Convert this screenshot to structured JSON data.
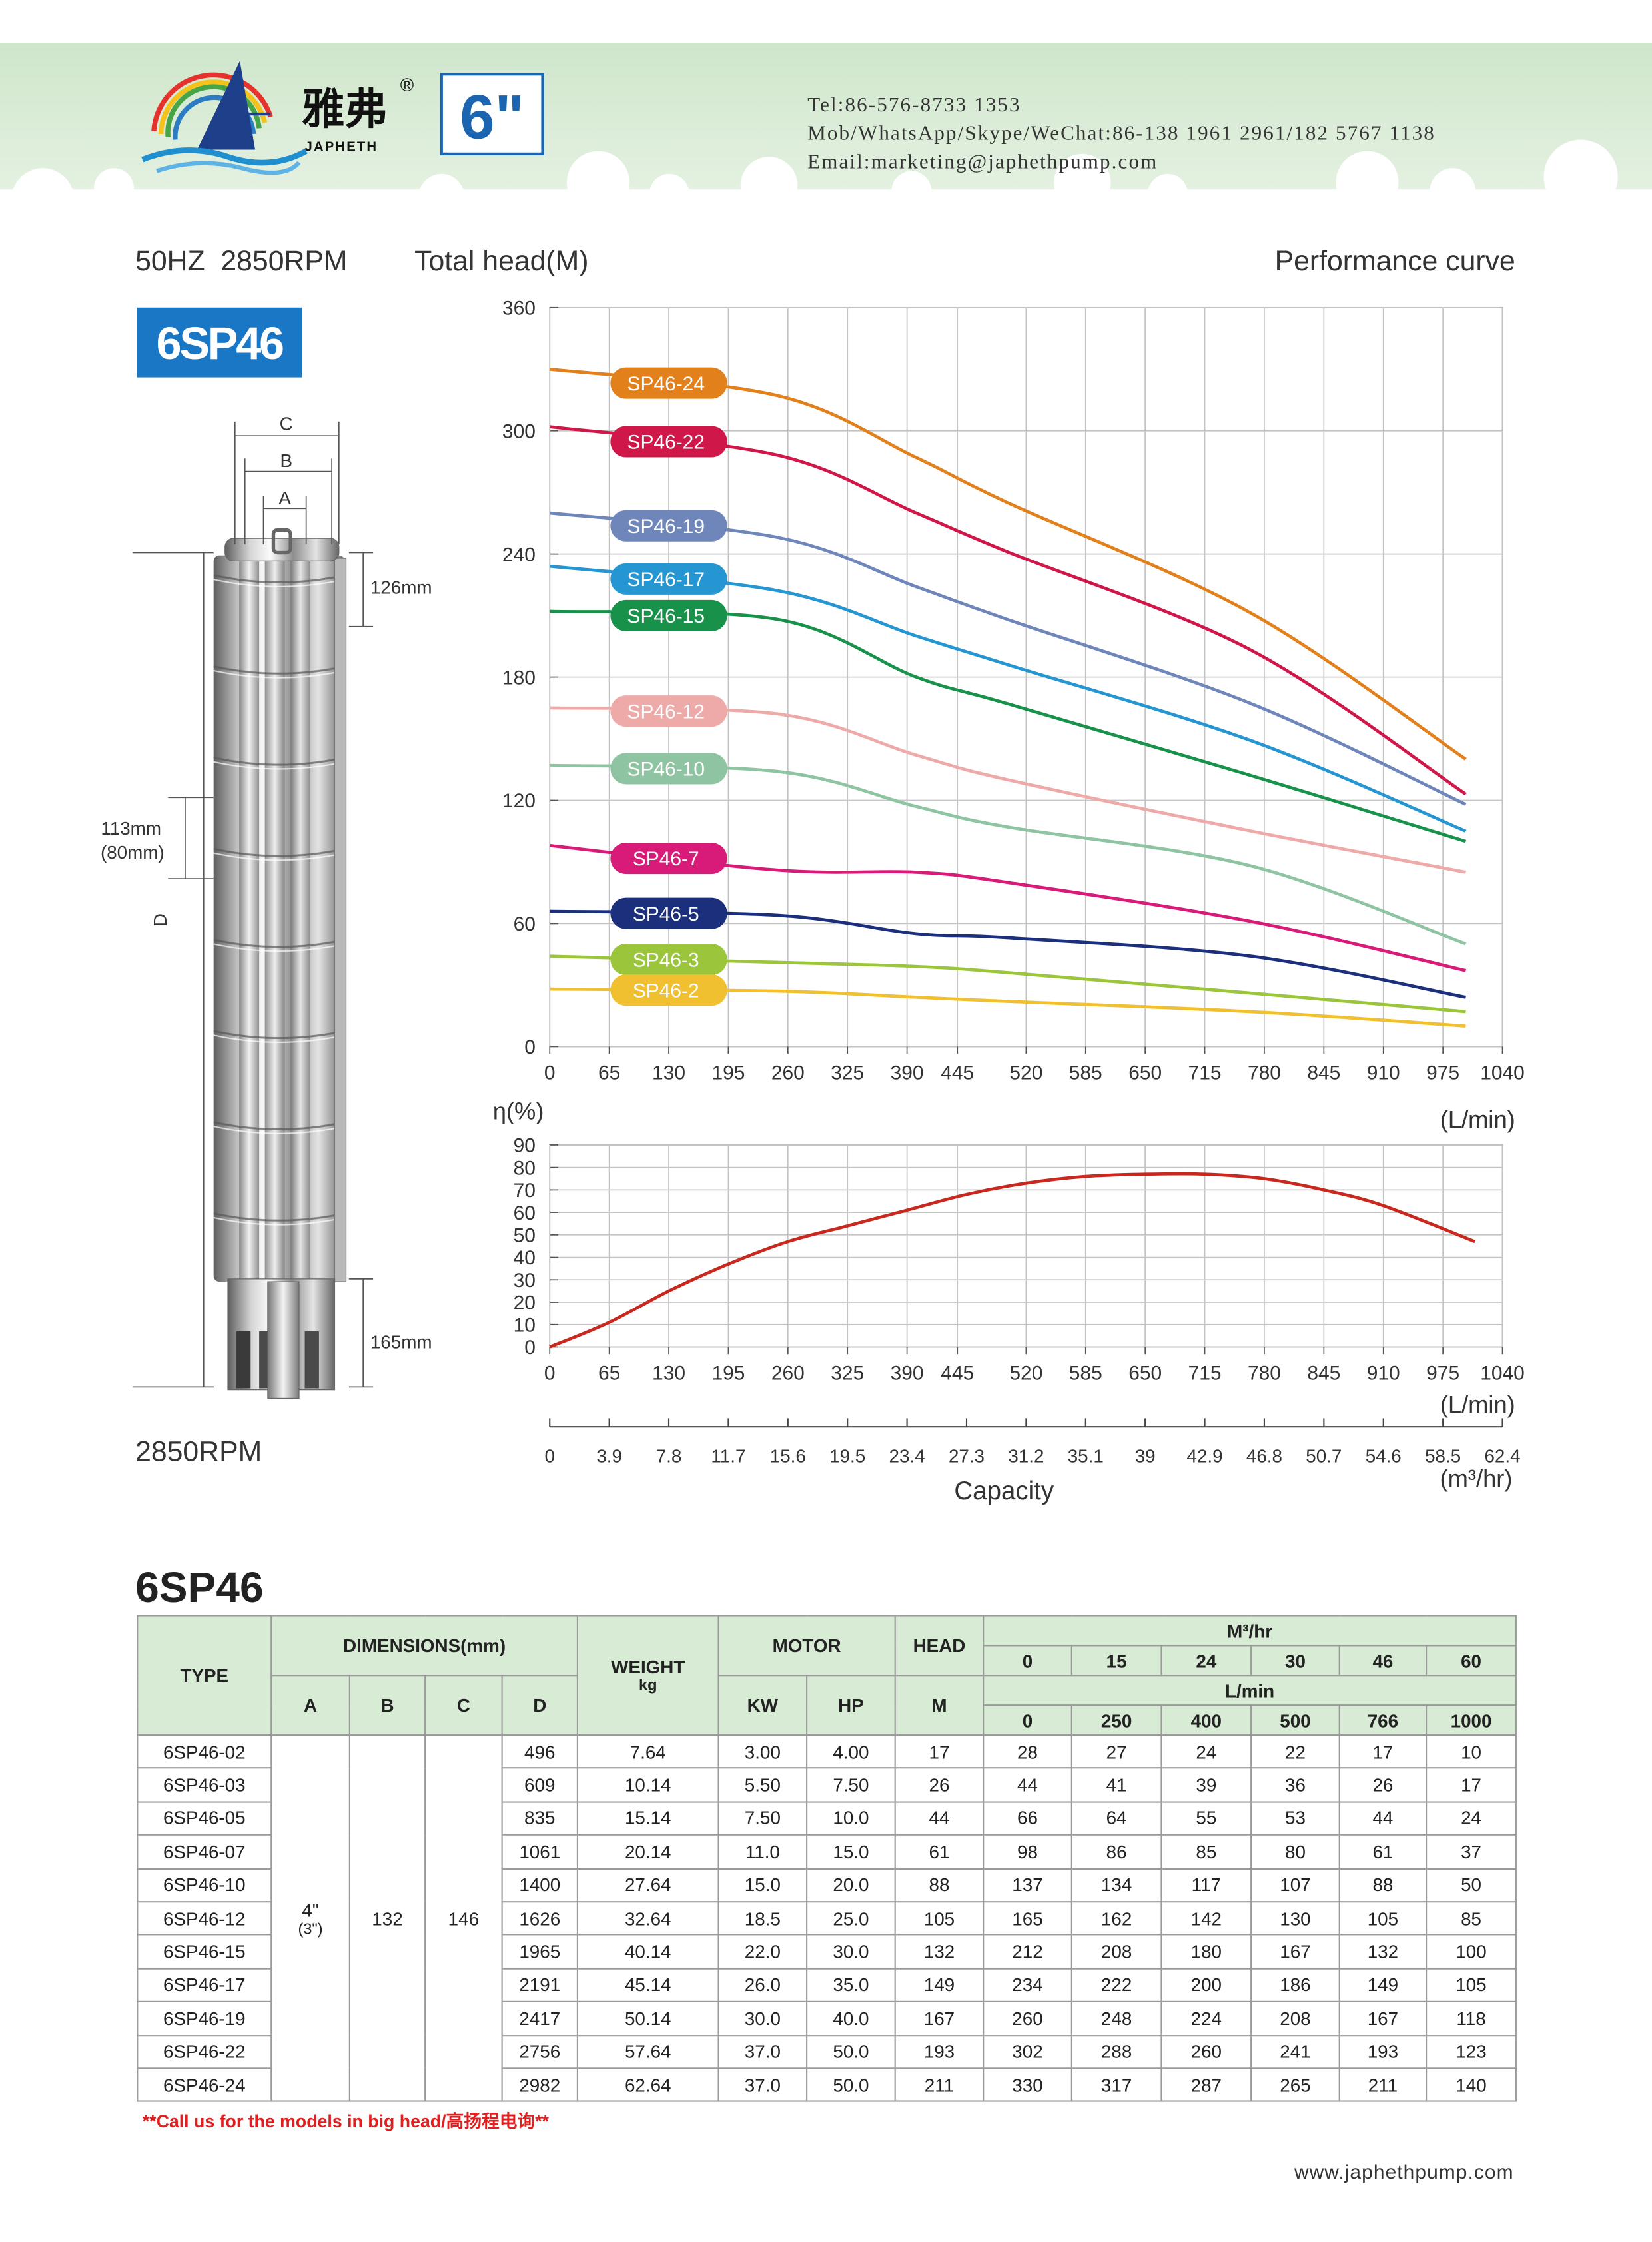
{
  "header": {
    "brand_cn": "雅弗",
    "brand_en": "JAPHETH",
    "registered": "®",
    "size": "6\"",
    "contacts": [
      "Tel:86-576-8733 1353",
      "Mob/WhatsApp/Skype/WeChat:86-138 1961 2961/182 5767 1138",
      "Email:marketing@japhethpump.com"
    ]
  },
  "subtitle": {
    "spec": "50HZ  2850RPM",
    "right": "Performance curve"
  },
  "model": "6SP46",
  "pump": {
    "labels": {
      "c": "C",
      "b": "B",
      "a": "A",
      "top": "126mm",
      "mid": "113mm",
      "mid_alt": "(80mm)",
      "d": "D",
      "bottom": "165mm"
    },
    "rpm": "2850RPM"
  },
  "chart_data": [
    {
      "type": "line",
      "y_label": "Total head(M)",
      "x_unit": "(L/min)",
      "xlim": [
        0,
        1040
      ],
      "xticks": [
        0,
        65,
        130,
        195,
        260,
        325,
        390,
        445,
        520,
        585,
        650,
        715,
        780,
        845,
        910,
        975,
        1040
      ],
      "ylim": [
        0,
        360
      ],
      "yticks": [
        0,
        60,
        120,
        180,
        240,
        300,
        360
      ],
      "grid": true,
      "x": [
        0,
        250,
        400,
        500,
        766,
        1000
      ],
      "series": [
        {
          "name": "SP46-24",
          "color": "#e2801c",
          "values": [
            330,
            317,
            287,
            265,
            211,
            140
          ]
        },
        {
          "name": "SP46-22",
          "color": "#d0174a",
          "values": [
            302,
            288,
            260,
            241,
            193,
            123
          ]
        },
        {
          "name": "SP46-19",
          "color": "#6f86bb",
          "values": [
            260,
            248,
            224,
            208,
            167,
            118
          ]
        },
        {
          "name": "SP46-17",
          "color": "#2596d2",
          "values": [
            234,
            222,
            200,
            186,
            149,
            105
          ]
        },
        {
          "name": "SP46-15",
          "color": "#18924a",
          "values": [
            212,
            208,
            180,
            167,
            132,
            100
          ]
        },
        {
          "name": "SP46-12",
          "color": "#eeaaa8",
          "values": [
            165,
            162,
            142,
            130,
            105,
            85
          ]
        },
        {
          "name": "SP46-10",
          "color": "#8fc4a2",
          "values": [
            137,
            134,
            117,
            107,
            88,
            50
          ]
        },
        {
          "name": "SP46-7",
          "color": "#d81b78",
          "values": [
            98,
            86,
            85,
            80,
            61,
            37
          ]
        },
        {
          "name": "SP46-5",
          "color": "#1b2f7c",
          "values": [
            66,
            64,
            55,
            53,
            44,
            24
          ]
        },
        {
          "name": "SP46-3",
          "color": "#9bc53a",
          "values": [
            44,
            41,
            39,
            36,
            26,
            17
          ]
        },
        {
          "name": "SP46-2",
          "color": "#f0c030",
          "values": [
            28,
            27,
            24,
            22,
            17,
            10
          ]
        }
      ]
    },
    {
      "type": "line",
      "y_label": "η(%)",
      "x_unit": "(L/min)",
      "xlim": [
        0,
        1040
      ],
      "xticks": [
        0,
        65,
        130,
        195,
        260,
        325,
        390,
        445,
        520,
        585,
        650,
        715,
        780,
        845,
        910,
        975,
        1040
      ],
      "ylim": [
        0,
        90
      ],
      "yticks": [
        0,
        10,
        20,
        30,
        40,
        50,
        60,
        70,
        80,
        90
      ],
      "grid": true,
      "x": [
        0,
        65,
        130,
        195,
        260,
        325,
        390,
        455,
        520,
        585,
        650,
        715,
        780,
        845,
        910,
        1010
      ],
      "values": [
        0,
        11,
        25,
        37,
        47,
        54,
        61,
        68,
        73,
        76,
        77,
        77,
        75,
        70,
        63,
        47
      ],
      "color": "#c8281e",
      "x2lim": [
        0,
        62.4
      ],
      "x2ticks": [
        0,
        3.9,
        7.8,
        11.7,
        15.6,
        19.5,
        23.4,
        27.3,
        31.2,
        35.1,
        39,
        42.9,
        46.8,
        50.7,
        54.6,
        58.5,
        62.4
      ],
      "x2_unit_top": "(L/min)",
      "x2_label": "Capacity",
      "x2_unit": "(m³/hr)"
    }
  ],
  "table": {
    "title": "6SP46",
    "headers": {
      "type": "TYPE",
      "dimensions": "DIMENSIONS(mm)",
      "dims": [
        "A",
        "B",
        "C",
        "D"
      ],
      "weight": [
        "WEIGHT",
        "kg"
      ],
      "motor": "MOTOR",
      "motor_cols": [
        "KW",
        "HP"
      ],
      "head": "HEAD",
      "head_unit": "M",
      "flow_unit_1": "M³/hr",
      "flow_1": [
        "0",
        "15",
        "24",
        "30",
        "46",
        "60"
      ],
      "flow_unit_2": "L/min",
      "flow_2": [
        "0",
        "250",
        "400",
        "500",
        "766",
        "1000"
      ]
    },
    "merged": {
      "a": [
        "4\"",
        "(3\")"
      ],
      "b": "132",
      "c": "146"
    },
    "rows": [
      [
        "6SP46-02",
        "496",
        "7.64",
        "3.00",
        "4.00",
        "17",
        "28",
        "27",
        "24",
        "22",
        "17",
        "10"
      ],
      [
        "6SP46-03",
        "609",
        "10.14",
        "5.50",
        "7.50",
        "26",
        "44",
        "41",
        "39",
        "36",
        "26",
        "17"
      ],
      [
        "6SP46-05",
        "835",
        "15.14",
        "7.50",
        "10.0",
        "44",
        "66",
        "64",
        "55",
        "53",
        "44",
        "24"
      ],
      [
        "6SP46-07",
        "1061",
        "20.14",
        "11.0",
        "15.0",
        "61",
        "98",
        "86",
        "85",
        "80",
        "61",
        "37"
      ],
      [
        "6SP46-10",
        "1400",
        "27.64",
        "15.0",
        "20.0",
        "88",
        "137",
        "134",
        "117",
        "107",
        "88",
        "50"
      ],
      [
        "6SP46-12",
        "1626",
        "32.64",
        "18.5",
        "25.0",
        "105",
        "165",
        "162",
        "142",
        "130",
        "105",
        "85"
      ],
      [
        "6SP46-15",
        "1965",
        "40.14",
        "22.0",
        "30.0",
        "132",
        "212",
        "208",
        "180",
        "167",
        "132",
        "100"
      ],
      [
        "6SP46-17",
        "2191",
        "45.14",
        "26.0",
        "35.0",
        "149",
        "234",
        "222",
        "200",
        "186",
        "149",
        "105"
      ],
      [
        "6SP46-19",
        "2417",
        "50.14",
        "30.0",
        "40.0",
        "167",
        "260",
        "248",
        "224",
        "208",
        "167",
        "118"
      ],
      [
        "6SP46-22",
        "2756",
        "57.64",
        "37.0",
        "50.0",
        "193",
        "302",
        "288",
        "260",
        "241",
        "193",
        "123"
      ],
      [
        "6SP46-24",
        "2982",
        "62.64",
        "37.0",
        "50.0",
        "211",
        "330",
        "317",
        "287",
        "265",
        "211",
        "140"
      ]
    ]
  },
  "note": "**Call us for the models in big head/高扬程电询**",
  "website": "www.japhethpump.com"
}
